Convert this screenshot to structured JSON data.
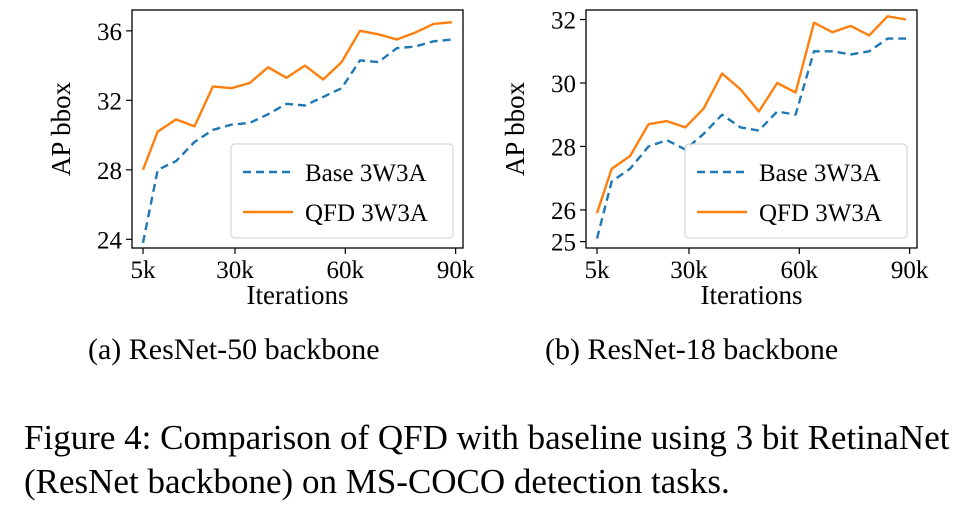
{
  "chart_data": [
    {
      "type": "line",
      "subcaption": "(a) ResNet-50 backbone",
      "xlabel": "Iterations",
      "ylabel": "AP bbox",
      "xlim": [
        2,
        92
      ],
      "ylim": [
        23.5,
        37.2
      ],
      "xticks": [
        {
          "v": 5,
          "label": "5k"
        },
        {
          "v": 30,
          "label": "30k"
        },
        {
          "v": 60,
          "label": "60k"
        },
        {
          "v": 90,
          "label": "90k"
        }
      ],
      "yticks": [
        {
          "v": 24,
          "label": "24"
        },
        {
          "v": 28,
          "label": "28"
        },
        {
          "v": 32,
          "label": "32"
        },
        {
          "v": 36,
          "label": "36"
        }
      ],
      "legend_position": "lower-right",
      "grid": false,
      "x": [
        5,
        9,
        14,
        19,
        24,
        29,
        34,
        39,
        44,
        49,
        54,
        59,
        64,
        69,
        74,
        79,
        84,
        89
      ],
      "series": [
        {
          "name": "Base 3W3A",
          "style": "dashed",
          "color": "#1f77b4",
          "values": [
            23.8,
            28.0,
            28.5,
            29.6,
            30.3,
            30.6,
            30.7,
            31.2,
            31.8,
            31.7,
            32.2,
            32.7,
            34.3,
            34.2,
            35.0,
            35.1,
            35.4,
            35.5
          ]
        },
        {
          "name": "QFD 3W3A",
          "style": "solid",
          "color": "#ff7f0e",
          "values": [
            28.0,
            30.2,
            30.9,
            30.5,
            32.8,
            32.7,
            33.0,
            33.9,
            33.3,
            34.0,
            33.2,
            34.2,
            36.0,
            35.8,
            35.5,
            35.9,
            36.4,
            36.5
          ]
        }
      ]
    },
    {
      "type": "line",
      "subcaption": "(b) ResNet-18 backbone",
      "xlabel": "Iterations",
      "ylabel": "AP bbox",
      "xlim": [
        2,
        92
      ],
      "ylim": [
        24.8,
        32.3
      ],
      "xticks": [
        {
          "v": 5,
          "label": "5k"
        },
        {
          "v": 30,
          "label": "30k"
        },
        {
          "v": 60,
          "label": "60k"
        },
        {
          "v": 90,
          "label": "90k"
        }
      ],
      "yticks": [
        {
          "v": 25,
          "label": "25"
        },
        {
          "v": 26,
          "label": "26"
        },
        {
          "v": 28,
          "label": "28"
        },
        {
          "v": 30,
          "label": "30"
        },
        {
          "v": 32,
          "label": "32"
        }
      ],
      "legend_position": "lower-right",
      "grid": false,
      "x": [
        5,
        9,
        14,
        19,
        24,
        29,
        34,
        39,
        44,
        49,
        54,
        59,
        64,
        69,
        74,
        79,
        84,
        89
      ],
      "series": [
        {
          "name": "Base 3W3A",
          "style": "dashed",
          "color": "#1f77b4",
          "values": [
            25.1,
            26.9,
            27.3,
            28.0,
            28.2,
            27.9,
            28.4,
            29.0,
            28.6,
            28.5,
            29.1,
            29.0,
            31.0,
            31.0,
            30.9,
            31.0,
            31.4,
            31.4
          ]
        },
        {
          "name": "QFD 3W3A",
          "style": "solid",
          "color": "#ff7f0e",
          "values": [
            25.9,
            27.3,
            27.7,
            28.7,
            28.8,
            28.6,
            29.2,
            30.3,
            29.8,
            29.1,
            30.0,
            29.7,
            31.9,
            31.6,
            31.8,
            31.5,
            32.1,
            32.0
          ]
        }
      ]
    }
  ],
  "figure_caption": "Figure 4: Comparison of QFD with baseline using 3 bit RetinaNet (ResNet backbone) on MS-COCO detection tasks."
}
